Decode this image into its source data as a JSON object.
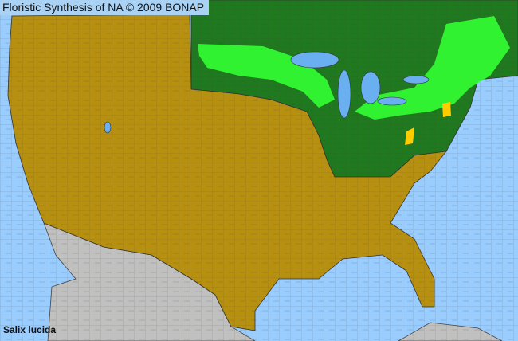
{
  "header": {
    "title": "Floristic Synthesis of NA © 2009 BONAP"
  },
  "species": "Salix lucida",
  "colors": {
    "water": "#99ccff",
    "native_not_present": "#b8900f",
    "present_in_state": "#1f7a1f",
    "present_in_county": "#33ff33",
    "rare": "#ffcc00",
    "outside_region": "#c0c0c0"
  }
}
